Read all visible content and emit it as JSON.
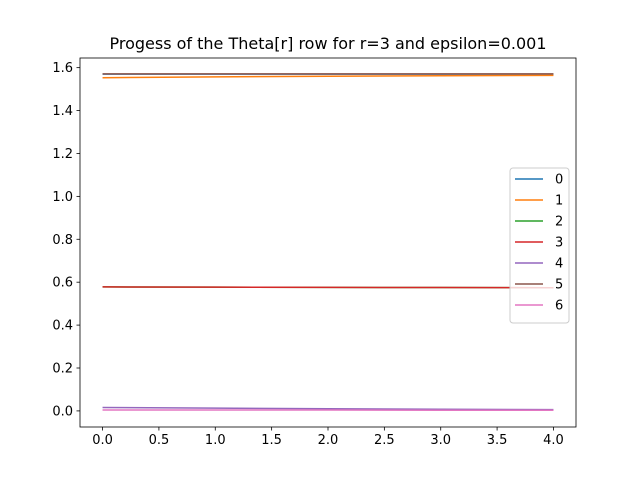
{
  "chart_data": {
    "type": "line",
    "title": "Progess of the Theta[r] row for r=3 and epsilon=0.001",
    "xlabel": "",
    "ylabel": "",
    "xlim": [
      -0.2,
      4.2
    ],
    "ylim": [
      -0.075,
      1.645
    ],
    "x": [
      0,
      1,
      2,
      3,
      4
    ],
    "xticks": [
      0.0,
      0.5,
      1.0,
      1.5,
      2.0,
      2.5,
      3.0,
      3.5,
      4.0
    ],
    "xtick_labels": [
      "0.0",
      "0.5",
      "1.0",
      "1.5",
      "2.0",
      "2.5",
      "3.0",
      "3.5",
      "4.0"
    ],
    "yticks": [
      0.0,
      0.2,
      0.4,
      0.6,
      0.8,
      1.0,
      1.2,
      1.4,
      1.6
    ],
    "ytick_labels": [
      "0.0",
      "0.2",
      "0.4",
      "0.6",
      "0.8",
      "1.0",
      "1.2",
      "1.4",
      "1.6"
    ],
    "grid": false,
    "legend_position": "center-right",
    "series": [
      {
        "name": "0",
        "color": "#1f77b4",
        "values": [
          1.57,
          1.57,
          1.57,
          1.57,
          1.57
        ]
      },
      {
        "name": "1",
        "color": "#ff7f0e",
        "values": [
          1.553,
          1.557,
          1.56,
          1.562,
          1.564
        ]
      },
      {
        "name": "2",
        "color": "#2ca02c",
        "values": [
          0.578,
          0.577,
          0.576,
          0.575,
          0.574
        ]
      },
      {
        "name": "3",
        "color": "#d62728",
        "values": [
          0.578,
          0.577,
          0.576,
          0.575,
          0.574
        ]
      },
      {
        "name": "4",
        "color": "#9467bd",
        "values": [
          0.016,
          0.013,
          0.01,
          0.008,
          0.006
        ]
      },
      {
        "name": "5",
        "color": "#8c564b",
        "values": [
          1.571,
          1.571,
          1.571,
          1.571,
          1.571
        ]
      },
      {
        "name": "6",
        "color": "#e377c2",
        "values": [
          0.004,
          0.004,
          0.004,
          0.003,
          0.003
        ]
      }
    ]
  }
}
